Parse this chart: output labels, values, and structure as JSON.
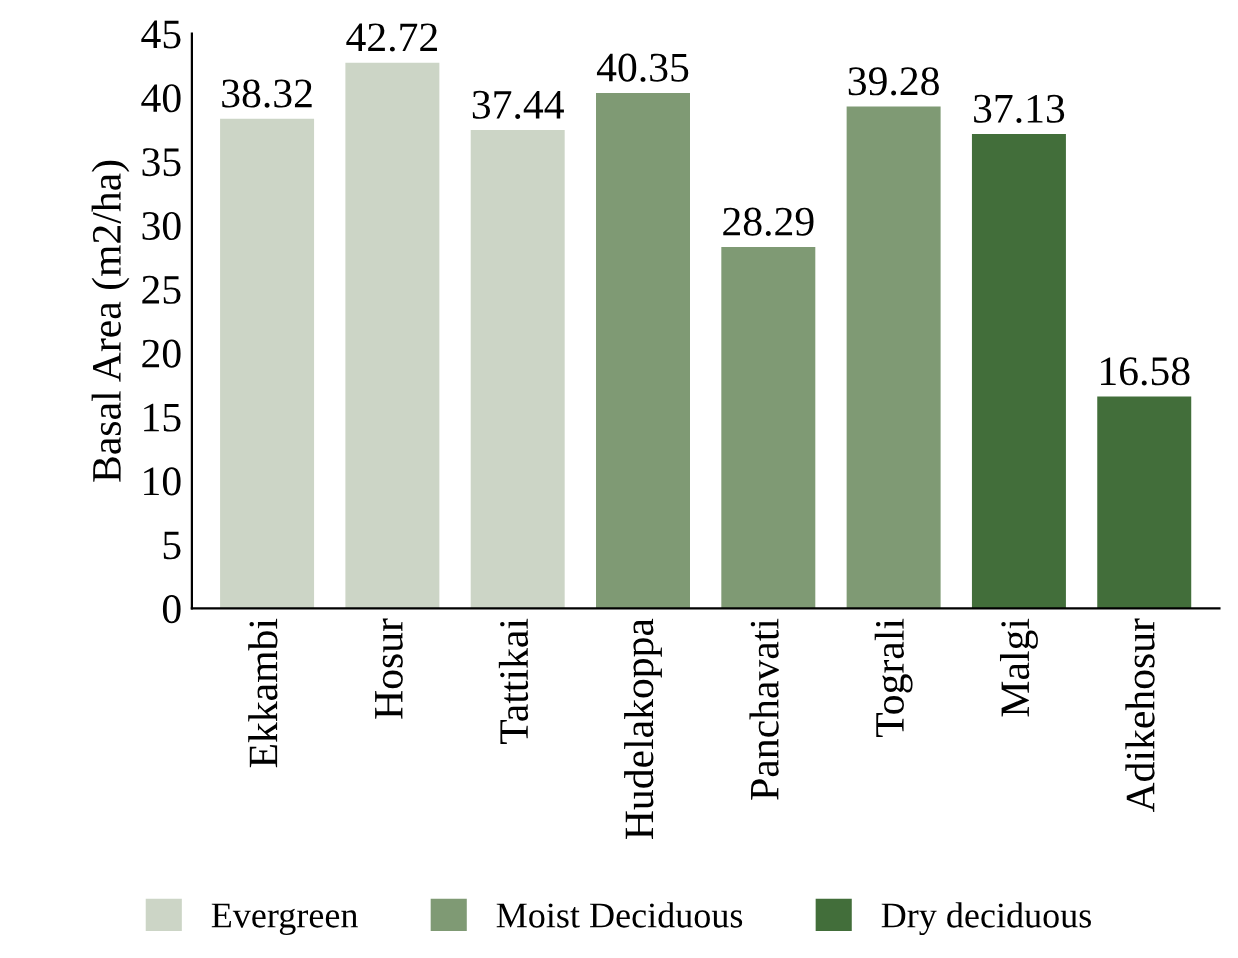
{
  "chart_data": {
    "type": "bar",
    "ylabel": "Basal Area (m2/ha)",
    "categories": [
      "Ekkambi",
      "Hosur",
      "Tattikai",
      "Hudelakoppa",
      "Panchavati",
      "Tograli",
      "Malgi",
      "Adikehosur"
    ],
    "series": [
      {
        "name": "Evergreen",
        "color": "#ccd5c6",
        "values": [
          38.32,
          42.72,
          37.44,
          null,
          null,
          null,
          null,
          null
        ]
      },
      {
        "name": "Moist Deciduous",
        "color": "#7f9a74",
        "values": [
          null,
          null,
          null,
          40.35,
          28.29,
          39.28,
          null,
          null
        ]
      },
      {
        "name": "Dry deciduous",
        "color": "#426e3a",
        "values": [
          null,
          null,
          null,
          null,
          null,
          null,
          37.13,
          16.58
        ]
      }
    ],
    "stacked": true,
    "ylim": [
      0,
      45
    ],
    "yticks": [
      0,
      5,
      10,
      15,
      20,
      25,
      30,
      35,
      40,
      45
    ],
    "data_labels": true,
    "grid": false,
    "legend": "bottom"
  }
}
